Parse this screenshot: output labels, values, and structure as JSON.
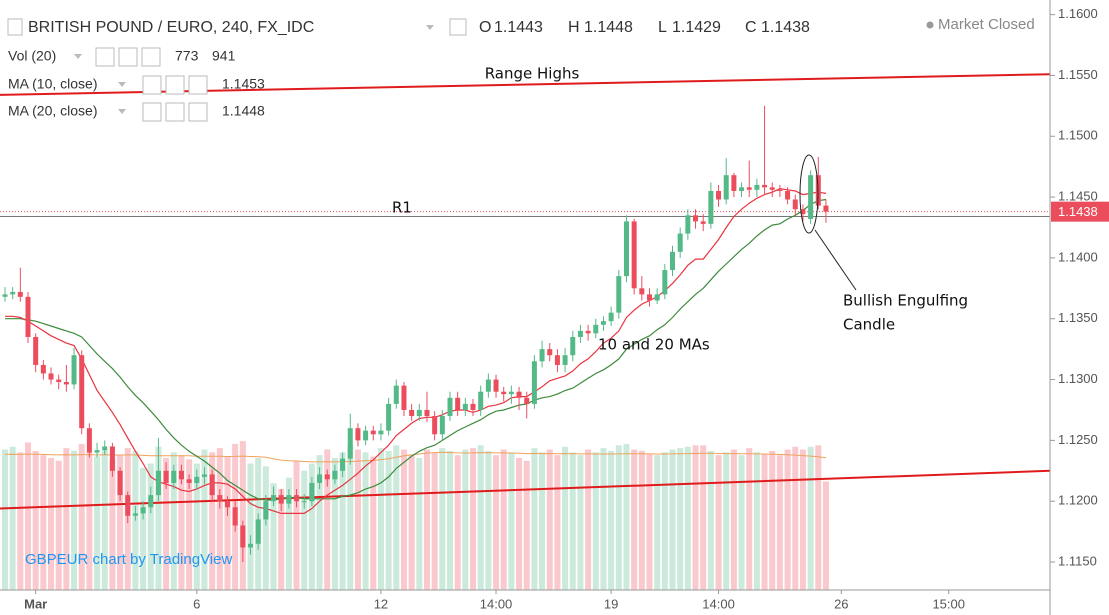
{
  "chart_data": {
    "type": "candlestick",
    "title": "BRITISH POUND / EURO, 240, FX_IDC",
    "ohlc_labels": [
      "O",
      "H",
      "L",
      "C"
    ],
    "status": "Market Closed",
    "watermark": "GBPEUR chart by TradingView",
    "volume_label": "Vol (20)",
    "ma10_label": "MA (10, close)",
    "ma20_label": "MA (20, close)",
    "up_color": "#53b987",
    "down_color": "#eb4d5c",
    "ma10_color": "#e8343f",
    "ma20_color": "#3d8b3d",
    "vol_ma_color": "#f0a35c",
    "trend_color": "#e01b1b",
    "open": [
      1.1368,
      1.137,
      1.1372,
      1.1368,
      1.1335,
      1.1312,
      1.1305,
      1.13,
      1.1298,
      1.1296,
      1.132,
      1.126,
      1.124,
      1.1242,
      1.1245,
      1.1225,
      1.1205,
      1.1188,
      1.119,
      1.1195,
      1.1205,
      1.1225,
      1.1215,
      1.1225,
      1.1218,
      1.1215,
      1.122,
      1.1222,
      1.1205,
      1.12,
      1.1195,
      1.118,
      1.1162,
      1.1165,
      1.1185,
      1.12,
      1.1205,
      1.1198,
      1.1205,
      1.12,
      1.12,
      1.1215,
      1.1222,
      1.1218,
      1.1225,
      1.1235,
      1.126,
      1.125,
      1.1258,
      1.1255,
      1.1258,
      1.128,
      1.1295,
      1.1275,
      1.127,
      1.1275,
      1.127,
      1.1255,
      1.127,
      1.1285,
      1.1275,
      1.128,
      1.1275,
      1.129,
      1.13,
      1.129,
      1.1288,
      1.129,
      1.1285,
      1.128,
      1.1315,
      1.1325,
      1.132,
      1.1312,
      1.132,
      1.1335,
      1.134,
      1.1338,
      1.1345,
      1.1348,
      1.1355,
      1.1385,
      1.143,
      1.1375,
      1.137,
      1.1365,
      1.137,
      1.139,
      1.1405,
      1.142,
      1.1435,
      1.143,
      1.1428,
      1.1455,
      1.1448,
      1.1468,
      1.1455,
      1.1458,
      1.1456,
      1.146,
      1.1458,
      1.1456,
      1.1455,
      1.1448,
      1.144,
      1.1432,
      1.1468,
      1.1443
    ],
    "high": [
      1.1376,
      1.1376,
      1.1392,
      1.1372,
      1.1338,
      1.1316,
      1.131,
      1.1304,
      1.1312,
      1.1326,
      1.1324,
      1.1264,
      1.1248,
      1.125,
      1.1248,
      1.1228,
      1.1208,
      1.1196,
      1.12,
      1.1212,
      1.1252,
      1.1232,
      1.123,
      1.123,
      1.1222,
      1.1226,
      1.1228,
      1.1226,
      1.121,
      1.1204,
      1.12,
      1.1184,
      1.1172,
      1.119,
      1.1205,
      1.1212,
      1.121,
      1.121,
      1.121,
      1.1206,
      1.122,
      1.1228,
      1.1226,
      1.123,
      1.124,
      1.1272,
      1.1264,
      1.1262,
      1.1262,
      1.1264,
      1.1285,
      1.13,
      1.1298,
      1.128,
      1.128,
      1.129,
      1.1274,
      1.1275,
      1.129,
      1.129,
      1.1285,
      1.1284,
      1.1295,
      1.1305,
      1.1304,
      1.1294,
      1.1295,
      1.1294,
      1.129,
      1.132,
      1.1332,
      1.133,
      1.1325,
      1.1326,
      1.134,
      1.1345,
      1.1345,
      1.135,
      1.1352,
      1.136,
      1.139,
      1.1435,
      1.1432,
      1.1385,
      1.1375,
      1.1375,
      1.1395,
      1.141,
      1.1425,
      1.144,
      1.144,
      1.1436,
      1.1462,
      1.146,
      1.1482,
      1.147,
      1.1462,
      1.148,
      1.1465,
      1.1525,
      1.1462,
      1.146,
      1.1458,
      1.1452,
      1.1444,
      1.1472,
      1.1483,
      1.1448
    ],
    "low": [
      1.1364,
      1.1366,
      1.1364,
      1.133,
      1.1306,
      1.13,
      1.1296,
      1.1292,
      1.129,
      1.1292,
      1.1255,
      1.1236,
      1.1236,
      1.1238,
      1.122,
      1.12,
      1.1182,
      1.1184,
      1.1185,
      1.119,
      1.12,
      1.121,
      1.121,
      1.1214,
      1.121,
      1.121,
      1.1214,
      1.12,
      1.1194,
      1.1188,
      1.1175,
      1.115,
      1.1156,
      1.116,
      1.118,
      1.1196,
      1.1192,
      1.1194,
      1.1195,
      1.1194,
      1.1196,
      1.121,
      1.1212,
      1.1214,
      1.122,
      1.123,
      1.1245,
      1.1246,
      1.125,
      1.125,
      1.1254,
      1.1276,
      1.127,
      1.1266,
      1.1266,
      1.1265,
      1.125,
      1.125,
      1.1266,
      1.127,
      1.127,
      1.127,
      1.127,
      1.1285,
      1.1285,
      1.1282,
      1.128,
      1.1275,
      1.1268,
      1.1276,
      1.131,
      1.1315,
      1.1306,
      1.1306,
      1.1315,
      1.133,
      1.1332,
      1.1334,
      1.134,
      1.1344,
      1.135,
      1.138,
      1.137,
      1.1365,
      1.136,
      1.1362,
      1.1366,
      1.1385,
      1.14,
      1.1415,
      1.1424,
      1.1422,
      1.1424,
      1.1442,
      1.1444,
      1.145,
      1.145,
      1.145,
      1.145,
      1.1452,
      1.145,
      1.145,
      1.1444,
      1.1435,
      1.143,
      1.1428,
      1.144,
      1.1429
    ],
    "close": [
      1.137,
      1.1372,
      1.1368,
      1.1335,
      1.1312,
      1.1305,
      1.13,
      1.1298,
      1.1296,
      1.132,
      1.126,
      1.124,
      1.1242,
      1.1245,
      1.1225,
      1.1205,
      1.1188,
      1.119,
      1.1195,
      1.1205,
      1.1225,
      1.1215,
      1.1225,
      1.1218,
      1.1215,
      1.122,
      1.1222,
      1.1205,
      1.12,
      1.1195,
      1.118,
      1.1162,
      1.1165,
      1.1185,
      1.12,
      1.1205,
      1.1198,
      1.1205,
      1.12,
      1.12,
      1.1215,
      1.1222,
      1.1218,
      1.1225,
      1.1235,
      1.126,
      1.125,
      1.1258,
      1.1255,
      1.1258,
      1.128,
      1.1295,
      1.1275,
      1.127,
      1.1275,
      1.127,
      1.1255,
      1.127,
      1.1285,
      1.1275,
      1.128,
      1.1275,
      1.129,
      1.13,
      1.129,
      1.1288,
      1.129,
      1.1285,
      1.128,
      1.1315,
      1.1325,
      1.132,
      1.1312,
      1.132,
      1.1335,
      1.134,
      1.1338,
      1.1345,
      1.1348,
      1.1355,
      1.1385,
      1.143,
      1.1375,
      1.137,
      1.1365,
      1.137,
      1.139,
      1.1405,
      1.142,
      1.1435,
      1.143,
      1.1428,
      1.1455,
      1.1448,
      1.1468,
      1.1455,
      1.1458,
      1.1456,
      1.146,
      1.1458,
      1.1456,
      1.1455,
      1.1448,
      1.144,
      1.1436,
      1.1468,
      1.1443,
      1.1438
    ],
    "volume": [
      1000,
      1020,
      980,
      1050,
      990,
      960,
      940,
      920,
      1010,
      990,
      1040,
      980,
      950,
      1000,
      930,
      960,
      1010,
      990,
      870,
      900,
      1020,
      940,
      980,
      960,
      930,
      900,
      1000,
      980,
      1010,
      950,
      1040,
      1060,
      900,
      940,
      880,
      760,
      720,
      800,
      920,
      850,
      900,
      960,
      1000,
      940,
      980,
      1030,
      1000,
      980,
      950,
      1010,
      990,
      1030,
      1000,
      960,
      940,
      1000,
      980,
      1010,
      990,
      960,
      1000,
      1010,
      1030,
      990,
      960,
      1000,
      980,
      940,
      920,
      1010,
      980,
      1000,
      960,
      1020,
      980,
      960,
      1000,
      980,
      1010,
      990,
      1030,
      1040,
      1000,
      990,
      970,
      960,
      980,
      1000,
      1010,
      1020,
      1030,
      1030,
      990,
      960,
      980,
      1000,
      960,
      1010,
      980,
      970,
      990,
      960,
      1000,
      1020,
      1000,
      1020,
      1030,
      773
    ],
    "vol_ma": [
      965,
      966,
      965,
      968,
      967,
      965,
      963,
      962,
      963,
      962,
      964,
      963,
      962,
      963,
      961,
      961,
      962,
      962,
      958,
      955,
      957,
      955,
      956,
      955,
      955,
      952,
      952,
      952,
      952,
      950,
      951,
      953,
      950,
      948,
      945,
      935,
      925,
      920,
      918,
      915,
      912,
      912,
      913,
      912,
      913,
      915,
      917,
      920,
      922,
      928,
      935,
      945,
      955,
      962,
      968,
      975,
      978,
      980,
      978,
      976,
      975,
      976,
      978,
      977,
      976,
      976,
      975,
      973,
      971,
      972,
      971,
      971,
      970,
      971,
      970,
      969,
      969,
      968,
      968,
      968,
      969,
      970,
      970,
      970,
      969,
      968,
      968,
      969,
      970,
      971,
      972,
      973,
      973,
      972,
      971,
      971,
      970,
      970,
      969,
      968,
      967,
      965,
      963,
      960,
      957,
      953,
      948,
      941
    ],
    "ma10": [
      1.1352,
      1.1352,
      1.1351,
      1.1348,
      1.1344,
      1.134,
      1.1336,
      1.1333,
      1.133,
      1.1328,
      1.1317,
      1.1304,
      1.1291,
      1.1282,
      1.1273,
      1.1263,
      1.1252,
      1.1241,
      1.1231,
      1.122,
      1.1216,
      1.1214,
      1.1212,
      1.1209,
      1.1208,
      1.121,
      1.1213,
      1.1215,
      1.1215,
      1.1214,
      1.121,
      1.1204,
      1.1198,
      1.1195,
      1.1194,
      1.1192,
      1.119,
      1.119,
      1.119,
      1.119,
      1.1194,
      1.12,
      1.1205,
      1.1209,
      1.1213,
      1.1218,
      1.1223,
      1.1229,
      1.1234,
      1.124,
      1.1246,
      1.1254,
      1.1259,
      1.1264,
      1.1268,
      1.1269,
      1.1269,
      1.1271,
      1.1274,
      1.1275,
      1.1275,
      1.1273,
      1.1275,
      1.1278,
      1.1279,
      1.1281,
      1.1285,
      1.1286,
      1.1286,
      1.129,
      1.1294,
      1.1299,
      1.1301,
      1.1303,
      1.1307,
      1.1313,
      1.1317,
      1.1323,
      1.133,
      1.1334,
      1.134,
      1.1351,
      1.1357,
      1.1362,
      1.1365,
      1.1368,
      1.1373,
      1.1379,
      1.1386,
      1.1394,
      1.1399,
      1.1399,
      1.1407,
      1.1415,
      1.1425,
      1.1434,
      1.144,
      1.1445,
      1.1449,
      1.1452,
      1.1454,
      1.1457,
      1.1456,
      1.1455,
      1.1452,
      1.1453,
      1.1454,
      1.1453
    ],
    "ma20": [
      1.135,
      1.135,
      1.135,
      1.1349,
      1.1348,
      1.1346,
      1.1344,
      1.1342,
      1.134,
      1.1338,
      1.1335,
      1.1328,
      1.1321,
      1.1315,
      1.1309,
      1.1302,
      1.1294,
      1.1287,
      1.1281,
      1.1274,
      1.1267,
      1.1259,
      1.1252,
      1.1246,
      1.1241,
      1.1237,
      1.1233,
      1.1228,
      1.1223,
      1.1217,
      1.1213,
      1.1209,
      1.1205,
      1.1202,
      1.1201,
      1.1201,
      1.1202,
      1.1203,
      1.1203,
      1.1202,
      1.1202,
      1.1202,
      1.1202,
      1.1202,
      1.1204,
      1.1205,
      1.1207,
      1.121,
      1.1212,
      1.1215,
      1.122,
      1.1227,
      1.1232,
      1.1237,
      1.1241,
      1.1244,
      1.1246,
      1.125,
      1.1254,
      1.1258,
      1.1261,
      1.1264,
      1.1267,
      1.1271,
      1.1274,
      1.1275,
      1.1277,
      1.1279,
      1.128,
      1.1283,
      1.1285,
      1.1286,
      1.1288,
      1.1291,
      1.1293,
      1.1297,
      1.1301,
      1.1305,
      1.1308,
      1.1312,
      1.1317,
      1.1325,
      1.1329,
      1.1333,
      1.1336,
      1.1341,
      1.1345,
      1.1351,
      1.1358,
      1.1364,
      1.137,
      1.1375,
      1.1382,
      1.1389,
      1.1395,
      1.1401,
      1.1407,
      1.1412,
      1.1418,
      1.1423,
      1.1427,
      1.1428,
      1.1432,
      1.1435,
      1.1439,
      1.1444,
      1.1447,
      1.1448
    ],
    "ylim": [
      1.1127,
      1.1612
    ],
    "yticks": [
      {
        "value": 1.115,
        "label": "1.1150"
      },
      {
        "value": 1.12,
        "label": "1.1200"
      },
      {
        "value": 1.125,
        "label": "1.1250"
      },
      {
        "value": 1.13,
        "label": "1.1300"
      },
      {
        "value": 1.135,
        "label": "1.1350"
      },
      {
        "value": 1.14,
        "label": "1.1400"
      },
      {
        "value": 1.145,
        "label": "1.1450"
      },
      {
        "value": 1.15,
        "label": "1.1500"
      },
      {
        "value": 1.155,
        "label": "1.1550"
      },
      {
        "value": 1.16,
        "label": "1.1600"
      }
    ],
    "xlim": [
      -0.65,
      136.2
    ],
    "xticks": [
      {
        "value": 4,
        "label": "Mar"
      },
      {
        "value": 25,
        "label": "6"
      },
      {
        "value": 49,
        "label": "12"
      },
      {
        "value": 64,
        "label": "14:00"
      },
      {
        "value": 79,
        "label": "19"
      },
      {
        "value": 93,
        "label": "14:00"
      },
      {
        "value": 109,
        "label": "26"
      },
      {
        "value": 123,
        "label": "15:00"
      }
    ],
    "vlim": [
      0,
      4200
    ],
    "grid": false,
    "trend_lines": [
      {
        "name": "Range Highs",
        "x": [
          -0.65,
          136.2
        ],
        "y": [
          1.1534,
          1.1551
        ]
      },
      {
        "x": [
          -0.65,
          136.2
        ],
        "y": [
          1.1194,
          1.1225
        ]
      }
    ],
    "hlines": [
      {
        "name": "R1",
        "value": 1.1434
      }
    ],
    "annotations": {
      "mas": "10 and 20 MAs",
      "engulfing": [
        "Bullish Engulfing",
        "Candle"
      ]
    }
  }
}
